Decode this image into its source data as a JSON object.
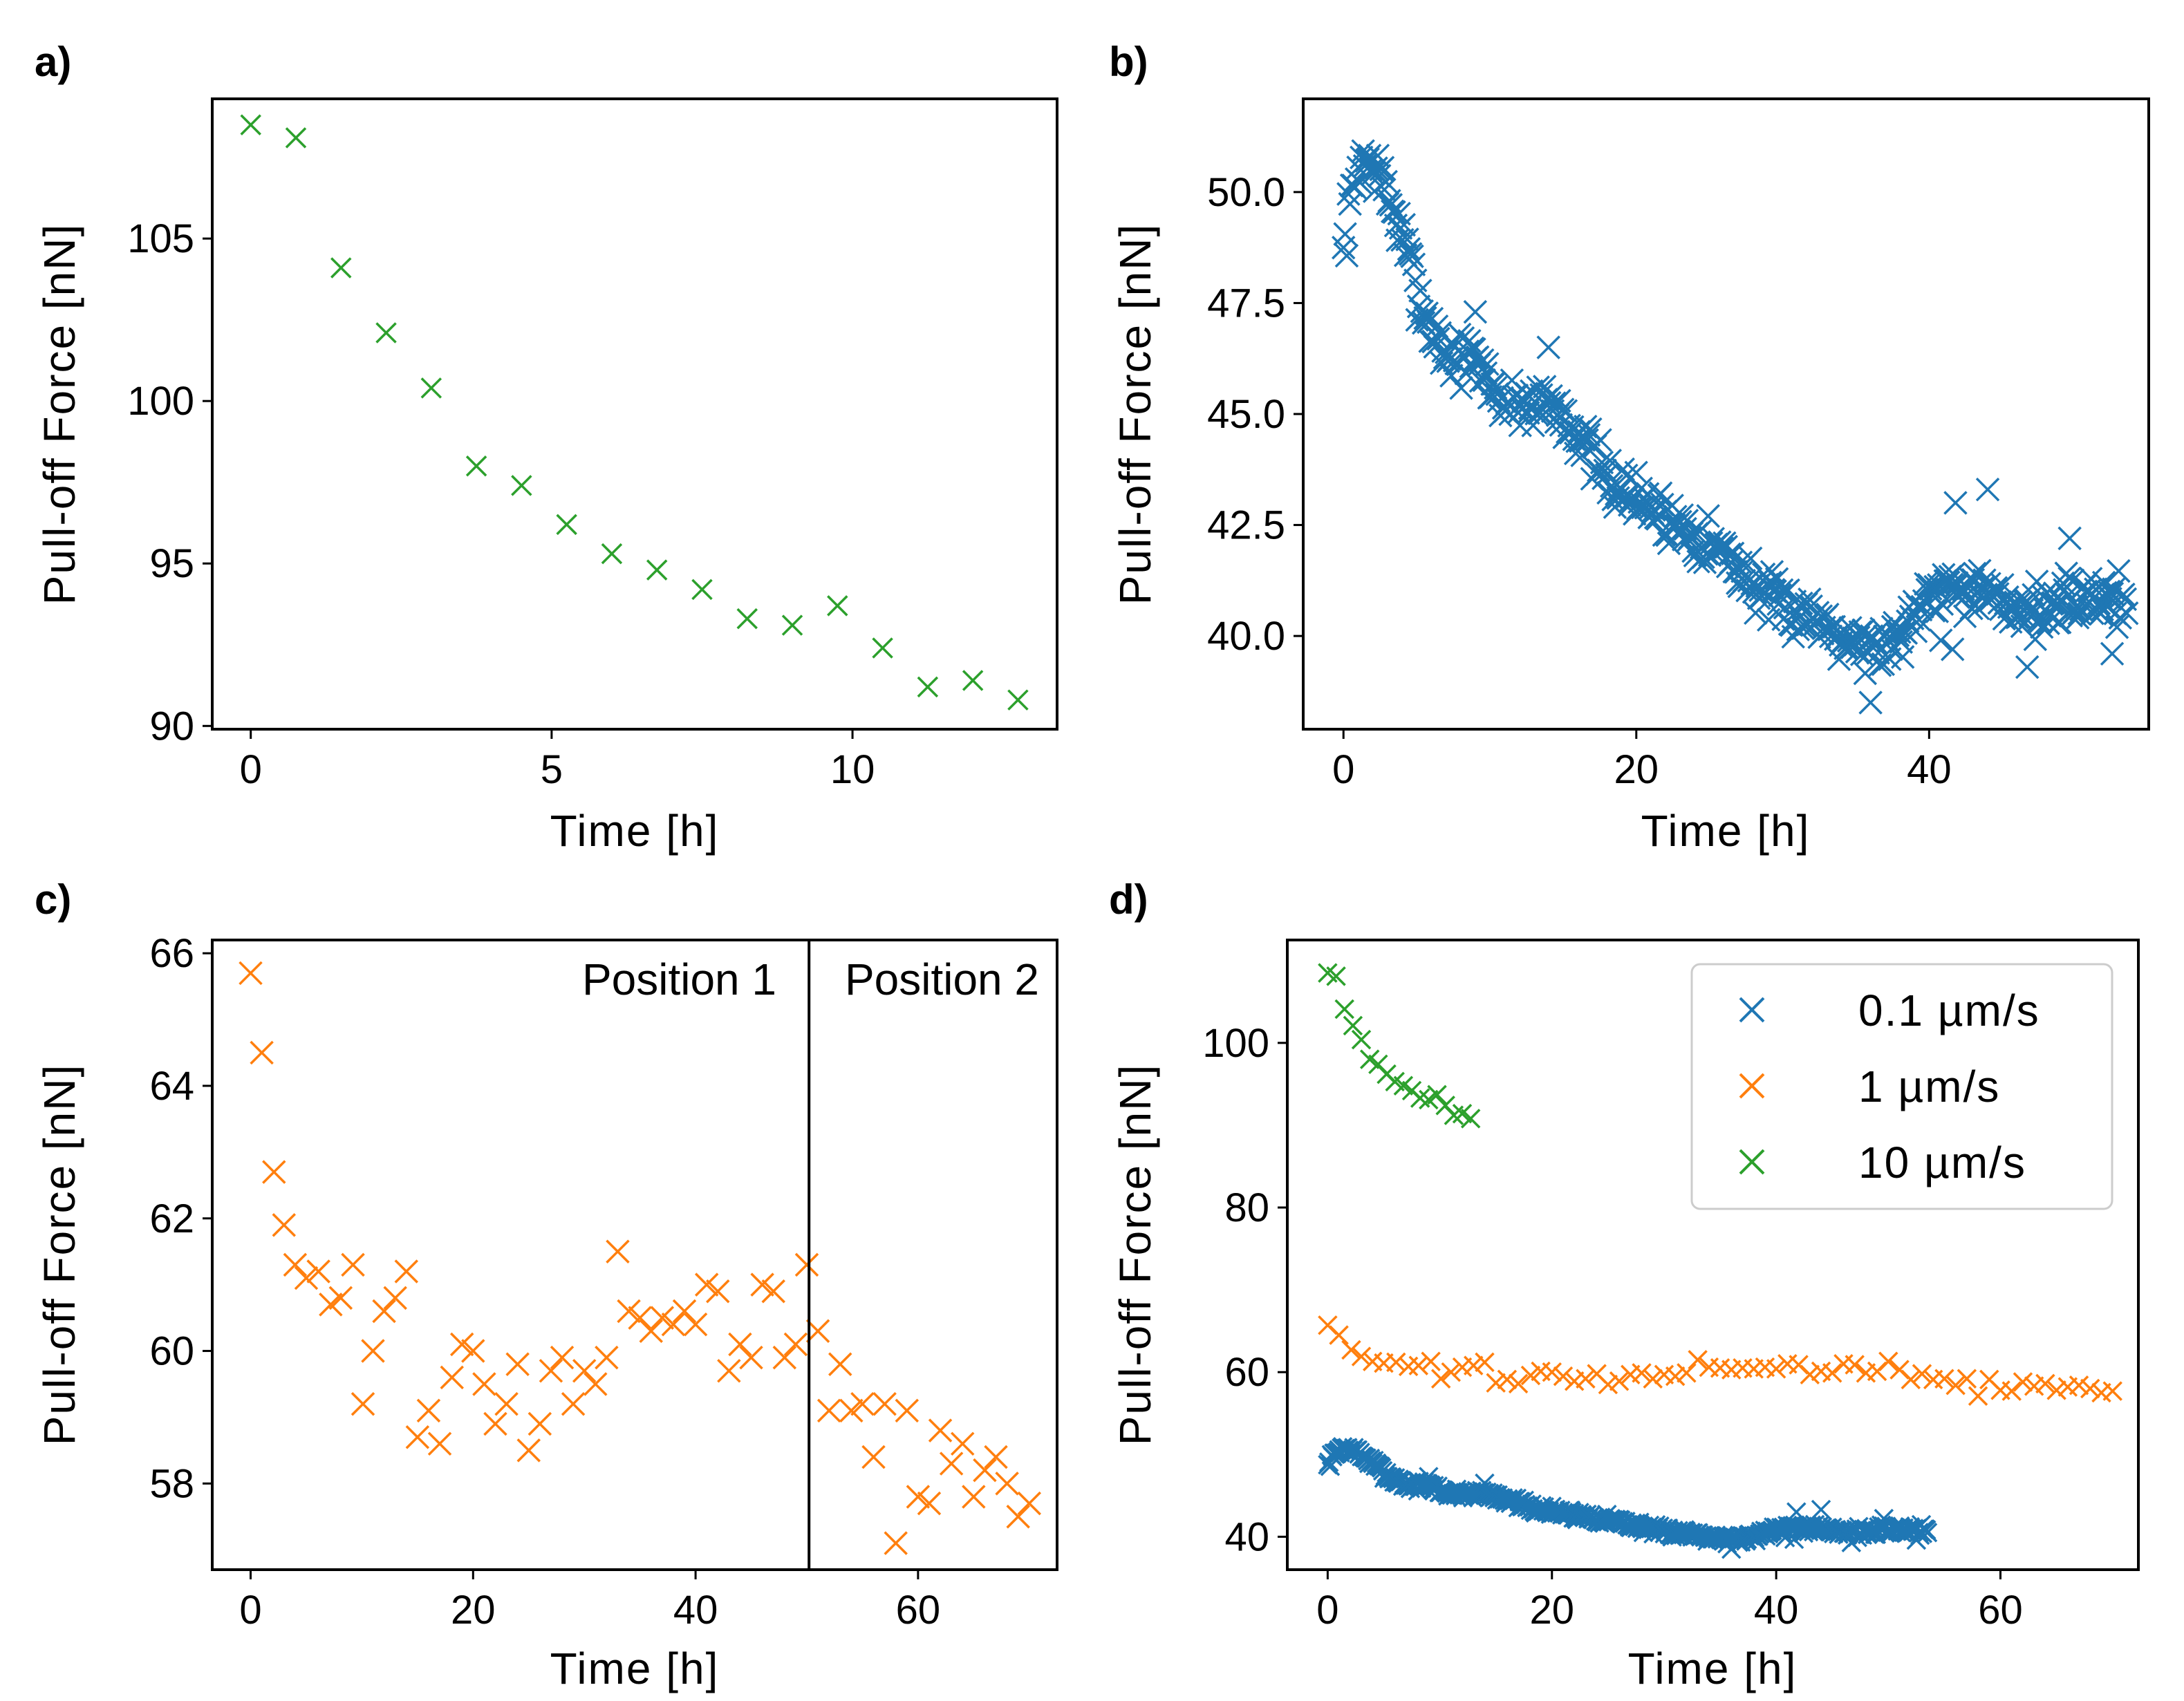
{
  "colors": {
    "blue": "#1f77b4",
    "orange": "#ff7f0e",
    "green": "#2ca02c"
  },
  "chart_data": [
    {
      "label": "a)",
      "type": "scatter",
      "marker": "x",
      "xlabel": "Time [h]",
      "ylabel": "Pull-off Force [nN]",
      "xlim": [
        -0.64,
        13.4
      ],
      "ylim": [
        89.9,
        109.3
      ],
      "xticks": [
        0,
        5,
        10
      ],
      "yticks": [
        90,
        95,
        100,
        105
      ],
      "series": [
        {
          "name": "10 µm/s",
          "color": "green",
          "x": [
            0,
            0.75,
            1.5,
            2.25,
            3.0,
            3.75,
            4.5,
            5.25,
            6.0,
            6.75,
            7.5,
            8.25,
            9.0,
            9.75,
            10.5,
            11.25,
            12.0,
            12.75
          ],
          "y": [
            108.5,
            108.1,
            104.1,
            102.1,
            100.4,
            98.0,
            97.4,
            96.2,
            95.3,
            94.8,
            94.2,
            93.3,
            93.1,
            93.7,
            92.4,
            91.2,
            91.4,
            90.8
          ]
        }
      ]
    },
    {
      "label": "b)",
      "type": "scatter",
      "marker": "x",
      "xlabel": "Time [h]",
      "ylabel": "Pull-off Force [nN]",
      "xlim": [
        -2.75,
        55.0
      ],
      "ylim": [
        37.9,
        52.1
      ],
      "xticks": [
        0,
        20,
        40
      ],
      "yticks": [
        "40.0",
        "42.5",
        "45.0",
        "47.5",
        "50.0"
      ],
      "series": [
        {
          "name": "0.1 µm/s",
          "color": "blue",
          "trend": [
            [
              0,
              48.6
            ],
            [
              0.5,
              49.8
            ],
            [
              1.2,
              50.8
            ],
            [
              2.5,
              50.4
            ],
            [
              4,
              49.0
            ],
            [
              5.5,
              47.3
            ],
            [
              7,
              46.3
            ],
            [
              9,
              46.2
            ],
            [
              11,
              45.2
            ],
            [
              14,
              45.3
            ],
            [
              16,
              44.6
            ],
            [
              18,
              43.5
            ],
            [
              22,
              42.7
            ],
            [
              26,
              41.9
            ],
            [
              29,
              40.8
            ],
            [
              33,
              40.3
            ],
            [
              36,
              39.7
            ],
            [
              38,
              40.0
            ],
            [
              40,
              41.1
            ],
            [
              42,
              41.2
            ],
            [
              45,
              40.7
            ],
            [
              48,
              40.6
            ],
            [
              51,
              40.9
            ],
            [
              53.5,
              40.8
            ]
          ],
          "spread": 0.6,
          "count": 480,
          "seed": 7,
          "extra": [
            [
              40.8,
              39.9
            ],
            [
              41.6,
              39.7
            ],
            [
              44.0,
              43.3
            ],
            [
              41.8,
              43.0
            ],
            [
              14.0,
              46.5
            ],
            [
              9.0,
              47.3
            ],
            [
              36.0,
              38.5
            ],
            [
              46.7,
              39.3
            ],
            [
              49.6,
              42.2
            ],
            [
              52.5,
              39.6
            ]
          ]
        }
      ]
    },
    {
      "label": "c)",
      "type": "scatter",
      "marker": "x",
      "xlabel": "Time [h]",
      "ylabel": "Pull-off Force [nN]",
      "xlim": [
        -3.45,
        72.5
      ],
      "ylim": [
        56.7,
        66.2
      ],
      "xticks": [
        0,
        20,
        40,
        60
      ],
      "yticks": [
        58,
        60,
        62,
        64,
        66
      ],
      "vline": 50.2,
      "annotations": [
        "Position 1",
        "Position 2"
      ],
      "series": [
        {
          "name": "1 µm/s",
          "color": "orange",
          "x": [
            0.0,
            1.0,
            2.1,
            3.0,
            4.0,
            5.0,
            6.1,
            7.2,
            8.1,
            9.2,
            10.1,
            11.0,
            12.0,
            13.0,
            14.0,
            15.0,
            16.0,
            17.0,
            18.1,
            19.0,
            20.0,
            21.0,
            22.0,
            23.0,
            24.0,
            25.0,
            26.0,
            27.0,
            28.0,
            29.0,
            30.0,
            31.0,
            32.0,
            33.0,
            34.0,
            35.0,
            36.0,
            37.0,
            38.0,
            39.0,
            40.0,
            41.0,
            42.0,
            43.0,
            44.0,
            45.0,
            46.0,
            47.0,
            48.0,
            49.0,
            50.0,
            51.0,
            52.0,
            53.0,
            54.0,
            55.0,
            56.0,
            57.0,
            58.0,
            59.0,
            60.0,
            61.0,
            62.0,
            63.0,
            64.0,
            65.0,
            66.0,
            67.0,
            68.0,
            69.0,
            70.0
          ],
          "y": [
            65.7,
            64.5,
            62.7,
            61.9,
            61.3,
            61.1,
            61.2,
            60.7,
            60.8,
            61.3,
            59.2,
            60.0,
            60.6,
            60.8,
            61.2,
            58.7,
            59.1,
            58.6,
            59.6,
            60.1,
            60.0,
            59.5,
            58.9,
            59.2,
            59.8,
            58.5,
            58.9,
            59.7,
            59.9,
            59.2,
            59.7,
            59.5,
            59.9,
            61.5,
            60.6,
            60.5,
            60.3,
            60.5,
            60.4,
            60.6,
            60.4,
            61.0,
            60.9,
            59.7,
            60.1,
            59.9,
            61.0,
            60.9,
            59.9,
            60.1,
            61.3,
            60.3,
            59.1,
            59.8,
            59.1,
            59.2,
            58.4,
            59.2,
            57.1,
            59.1,
            57.8,
            57.7,
            58.8,
            58.3,
            58.6,
            57.8,
            58.2,
            58.4,
            58.0,
            57.5,
            57.7
          ]
        }
      ]
    },
    {
      "label": "d)",
      "type": "scatter",
      "marker": "x",
      "xlabel": "Time [h]",
      "ylabel": "Pull-off Force [nN]",
      "xlim": [
        -3.6,
        72.3
      ],
      "ylim": [
        36.0,
        112.5
      ],
      "xticks": [
        0,
        20,
        40,
        60
      ],
      "yticks": [
        40,
        60,
        80,
        100
      ],
      "legend": {
        "placement": "top-right",
        "entries": [
          "0.1 µm/s",
          "1 µm/s",
          "10 µm/s"
        ]
      },
      "series": [
        {
          "name": "0.1 µm/s",
          "color": "blue",
          "source": "b"
        },
        {
          "name": "1 µm/s",
          "color": "orange",
          "source": "c"
        },
        {
          "name": "10 µm/s",
          "color": "green",
          "source": "a"
        }
      ]
    }
  ]
}
